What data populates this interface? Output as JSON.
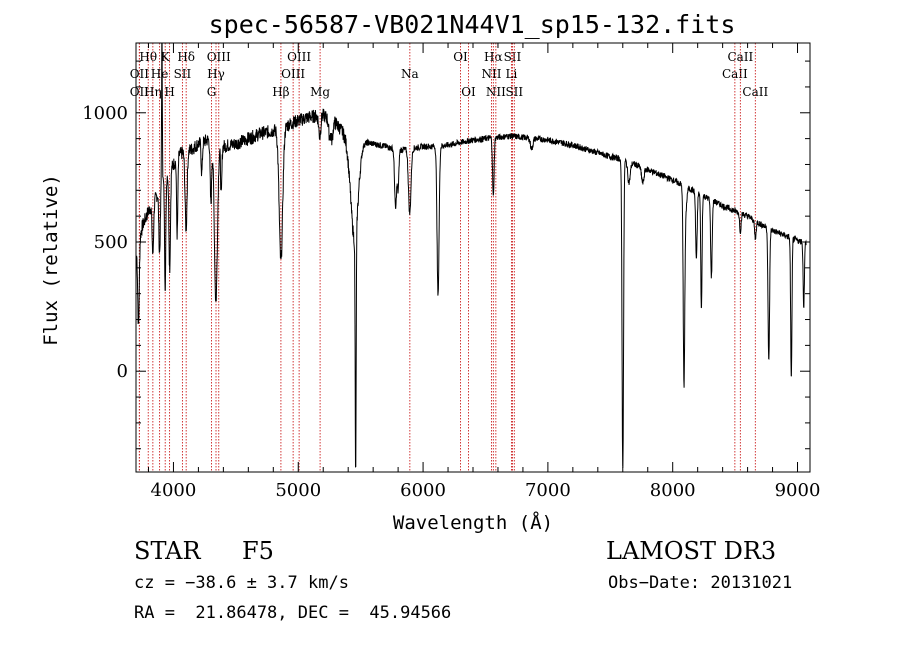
{
  "chart_data": {
    "type": "line",
    "title": "spec-56587-VB021N44V1_sp15-132.fits",
    "xlabel": "Wavelength (Å)",
    "ylabel": "Flux (relative)",
    "xlim": [
      3700,
      9100
    ],
    "ylim": [
      -390,
      1270
    ],
    "xticks": [
      4000,
      5000,
      6000,
      7000,
      8000,
      9000
    ],
    "xtick_labels": [
      "4000",
      "5000",
      "6000",
      "7000",
      "8000",
      "9000"
    ],
    "yticks": [
      0,
      500,
      1000
    ],
    "ytick_labels": [
      "0",
      "500",
      "1000"
    ],
    "x_minor_step": 200,
    "y_minor_step": 100,
    "spectrum_line_color": "#000000",
    "line_marker_color": "#cc2222",
    "continuum": [
      [
        3700,
        450
      ],
      [
        3750,
        560
      ],
      [
        3800,
        620
      ],
      [
        3850,
        660
      ],
      [
        3900,
        720
      ],
      [
        3950,
        760
      ],
      [
        4000,
        800
      ],
      [
        4050,
        840
      ],
      [
        4100,
        850
      ],
      [
        4150,
        860
      ],
      [
        4200,
        880
      ],
      [
        4300,
        900
      ],
      [
        4400,
        870
      ],
      [
        4500,
        880
      ],
      [
        4600,
        900
      ],
      [
        4700,
        920
      ],
      [
        4800,
        930
      ],
      [
        4900,
        950
      ],
      [
        5000,
        970
      ],
      [
        5100,
        985
      ],
      [
        5200,
        990
      ],
      [
        5300,
        960
      ],
      [
        5400,
        900
      ],
      [
        5500,
        890
      ],
      [
        5600,
        880
      ],
      [
        5700,
        870
      ],
      [
        5800,
        855
      ],
      [
        5900,
        860
      ],
      [
        6000,
        870
      ],
      [
        6100,
        870
      ],
      [
        6200,
        875
      ],
      [
        6300,
        885
      ],
      [
        6400,
        895
      ],
      [
        6500,
        900
      ],
      [
        6600,
        905
      ],
      [
        6700,
        910
      ],
      [
        6800,
        905
      ],
      [
        6900,
        900
      ],
      [
        7000,
        895
      ],
      [
        7100,
        885
      ],
      [
        7200,
        875
      ],
      [
        7300,
        860
      ],
      [
        7400,
        845
      ],
      [
        7500,
        830
      ],
      [
        7600,
        820
      ],
      [
        7700,
        800
      ],
      [
        7800,
        780
      ],
      [
        7900,
        760
      ],
      [
        8000,
        740
      ],
      [
        8100,
        715
      ],
      [
        8200,
        690
      ],
      [
        8300,
        665
      ],
      [
        8400,
        640
      ],
      [
        8500,
        620
      ],
      [
        8600,
        600
      ],
      [
        8700,
        570
      ],
      [
        8800,
        545
      ],
      [
        8900,
        525
      ],
      [
        9000,
        505
      ],
      [
        9100,
        495
      ]
    ],
    "absorption_features": [
      {
        "center": 3720,
        "depth": 320,
        "width": 6
      },
      {
        "center": 3835,
        "depth": 200,
        "width": 6
      },
      {
        "center": 3889,
        "depth": 250,
        "width": 6
      },
      {
        "center": 3934,
        "depth": 420,
        "width": 5
      },
      {
        "center": 3970,
        "depth": 380,
        "width": 6
      },
      {
        "center": 4030,
        "depth": 300,
        "width": 5
      },
      {
        "center": 4101,
        "depth": 300,
        "width": 8
      },
      {
        "center": 4227,
        "depth": 120,
        "width": 5
      },
      {
        "center": 4300,
        "depth": 250,
        "width": 6
      },
      {
        "center": 4340,
        "depth": 620,
        "width": 12
      },
      {
        "center": 4383,
        "depth": 200,
        "width": 5
      },
      {
        "center": 4861,
        "depth": 520,
        "width": 14
      },
      {
        "center": 5172,
        "depth": 80,
        "width": 8
      },
      {
        "center": 5250,
        "depth": 60,
        "width": 8
      },
      {
        "center": 5270,
        "depth": 70,
        "width": 8
      },
      {
        "center": 5450,
        "depth": 380,
        "width": 30
      },
      {
        "center": 5460,
        "depth": 950,
        "width": 4
      },
      {
        "center": 5780,
        "depth": 230,
        "width": 8
      },
      {
        "center": 5800,
        "depth": 150,
        "width": 6
      },
      {
        "center": 5893,
        "depth": 250,
        "width": 10
      },
      {
        "center": 6120,
        "depth": 580,
        "width": 8
      },
      {
        "center": 6563,
        "depth": 230,
        "width": 6
      },
      {
        "center": 6870,
        "depth": 40,
        "width": 10
      },
      {
        "center": 7600,
        "depth": 1210,
        "width": 6
      },
      {
        "center": 7650,
        "depth": 80,
        "width": 10
      },
      {
        "center": 7760,
        "depth": 60,
        "width": 10
      },
      {
        "center": 8090,
        "depth": 700,
        "width": 6
      },
      {
        "center": 8100,
        "depth": 120,
        "width": 10
      },
      {
        "center": 8190,
        "depth": 260,
        "width": 6
      },
      {
        "center": 8230,
        "depth": 450,
        "width": 5
      },
      {
        "center": 8310,
        "depth": 300,
        "width": 6
      },
      {
        "center": 8542,
        "depth": 70,
        "width": 6
      },
      {
        "center": 8662,
        "depth": 70,
        "width": 6
      },
      {
        "center": 8770,
        "depth": 520,
        "width": 6
      },
      {
        "center": 8950,
        "depth": 550,
        "width": 5
      },
      {
        "center": 9050,
        "depth": 250,
        "width": 5
      }
    ],
    "emission_features": [
      {
        "center": 3908,
        "height": 580,
        "width": 3
      }
    ],
    "noise_amplitude": 12,
    "line_markers": [
      {
        "label": "OII",
        "wavelength": 3727,
        "row": 2
      },
      {
        "label": "Hθ",
        "wavelength": 3798,
        "row": 0
      },
      {
        "label": "OII",
        "wavelength": 3727,
        "row": 1
      },
      {
        "label": "Hη",
        "wavelength": 3835,
        "row": 2
      },
      {
        "label": "He",
        "wavelength": 3889,
        "row": 1
      },
      {
        "label": "K",
        "wavelength": 3934,
        "row": 0
      },
      {
        "label": "H",
        "wavelength": 3969,
        "row": 2
      },
      {
        "label": "SII",
        "wavelength": 4072,
        "row": 1
      },
      {
        "label": "Hδ",
        "wavelength": 4102,
        "row": 0
      },
      {
        "label": "G",
        "wavelength": 4305,
        "row": 2
      },
      {
        "label": "Hγ",
        "wavelength": 4341,
        "row": 1
      },
      {
        "label": "OIII",
        "wavelength": 4363,
        "row": 0
      },
      {
        "label": "Hβ",
        "wavelength": 4861,
        "row": 2
      },
      {
        "label": "OIII",
        "wavelength": 4959,
        "row": 1
      },
      {
        "label": "OIII",
        "wavelength": 5007,
        "row": 0
      },
      {
        "label": "Mg",
        "wavelength": 5175,
        "row": 2
      },
      {
        "label": "Na",
        "wavelength": 5894,
        "row": 1
      },
      {
        "label": "OI",
        "wavelength": 6300,
        "row": 0
      },
      {
        "label": "OI",
        "wavelength": 6364,
        "row": 2
      },
      {
        "label": "NII",
        "wavelength": 6548,
        "row": 1
      },
      {
        "label": "Hα",
        "wavelength": 6563,
        "row": 0
      },
      {
        "label": "NII",
        "wavelength": 6583,
        "row": 2
      },
      {
        "label": "SII",
        "wavelength": 6716,
        "row": 0
      },
      {
        "label": "Li",
        "wavelength": 6708,
        "row": 1
      },
      {
        "label": "SII",
        "wavelength": 6731,
        "row": 2
      },
      {
        "label": "CaII",
        "wavelength": 8498,
        "row": 1
      },
      {
        "label": "CaII",
        "wavelength": 8542,
        "row": 0
      },
      {
        "label": "CaII",
        "wavelength": 8662,
        "row": 2
      }
    ]
  },
  "info": {
    "object_class": "STAR",
    "subclass": "F5",
    "survey": "LAMOST DR3",
    "redshift_line": "cz = −38.6 ± 3.7 km/s",
    "obs_date": "Obs−Date: 20131021",
    "coords": "RA =  21.86478, DEC =  45.94566"
  }
}
